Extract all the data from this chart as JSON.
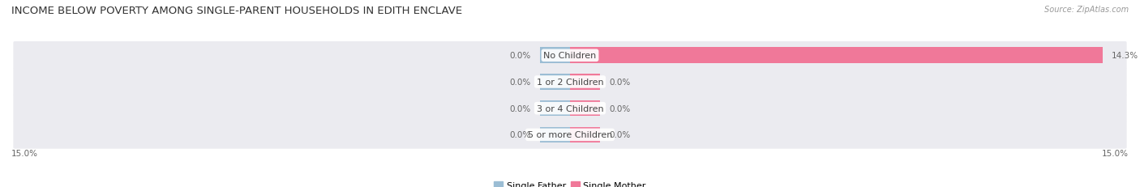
{
  "title": "INCOME BELOW POVERTY AMONG SINGLE-PARENT HOUSEHOLDS IN EDITH ENCLAVE",
  "source": "Source: ZipAtlas.com",
  "categories": [
    "No Children",
    "1 or 2 Children",
    "3 or 4 Children",
    "5 or more Children"
  ],
  "single_father": [
    0.0,
    0.0,
    0.0,
    0.0
  ],
  "single_mother": [
    14.3,
    0.0,
    0.0,
    0.0
  ],
  "xlim_left": -15.0,
  "xlim_right": 15.0,
  "x_left_label": "15.0%",
  "x_right_label": "15.0%",
  "color_father": "#9bbdd4",
  "color_mother": "#f07899",
  "row_bg_color": "#ebebf0",
  "row_bg_color_alt": "#f5f5f8",
  "legend_father": "Single Father",
  "legend_mother": "Single Mother",
  "title_fontsize": 9.5,
  "label_fontsize": 8,
  "bar_height": 0.6,
  "bar_label_fontsize": 7.5,
  "cat_label_fontsize": 8,
  "stub_size": 0.8,
  "father_val_xoffset": -0.3,
  "mother_val_xoffset": 0.3
}
